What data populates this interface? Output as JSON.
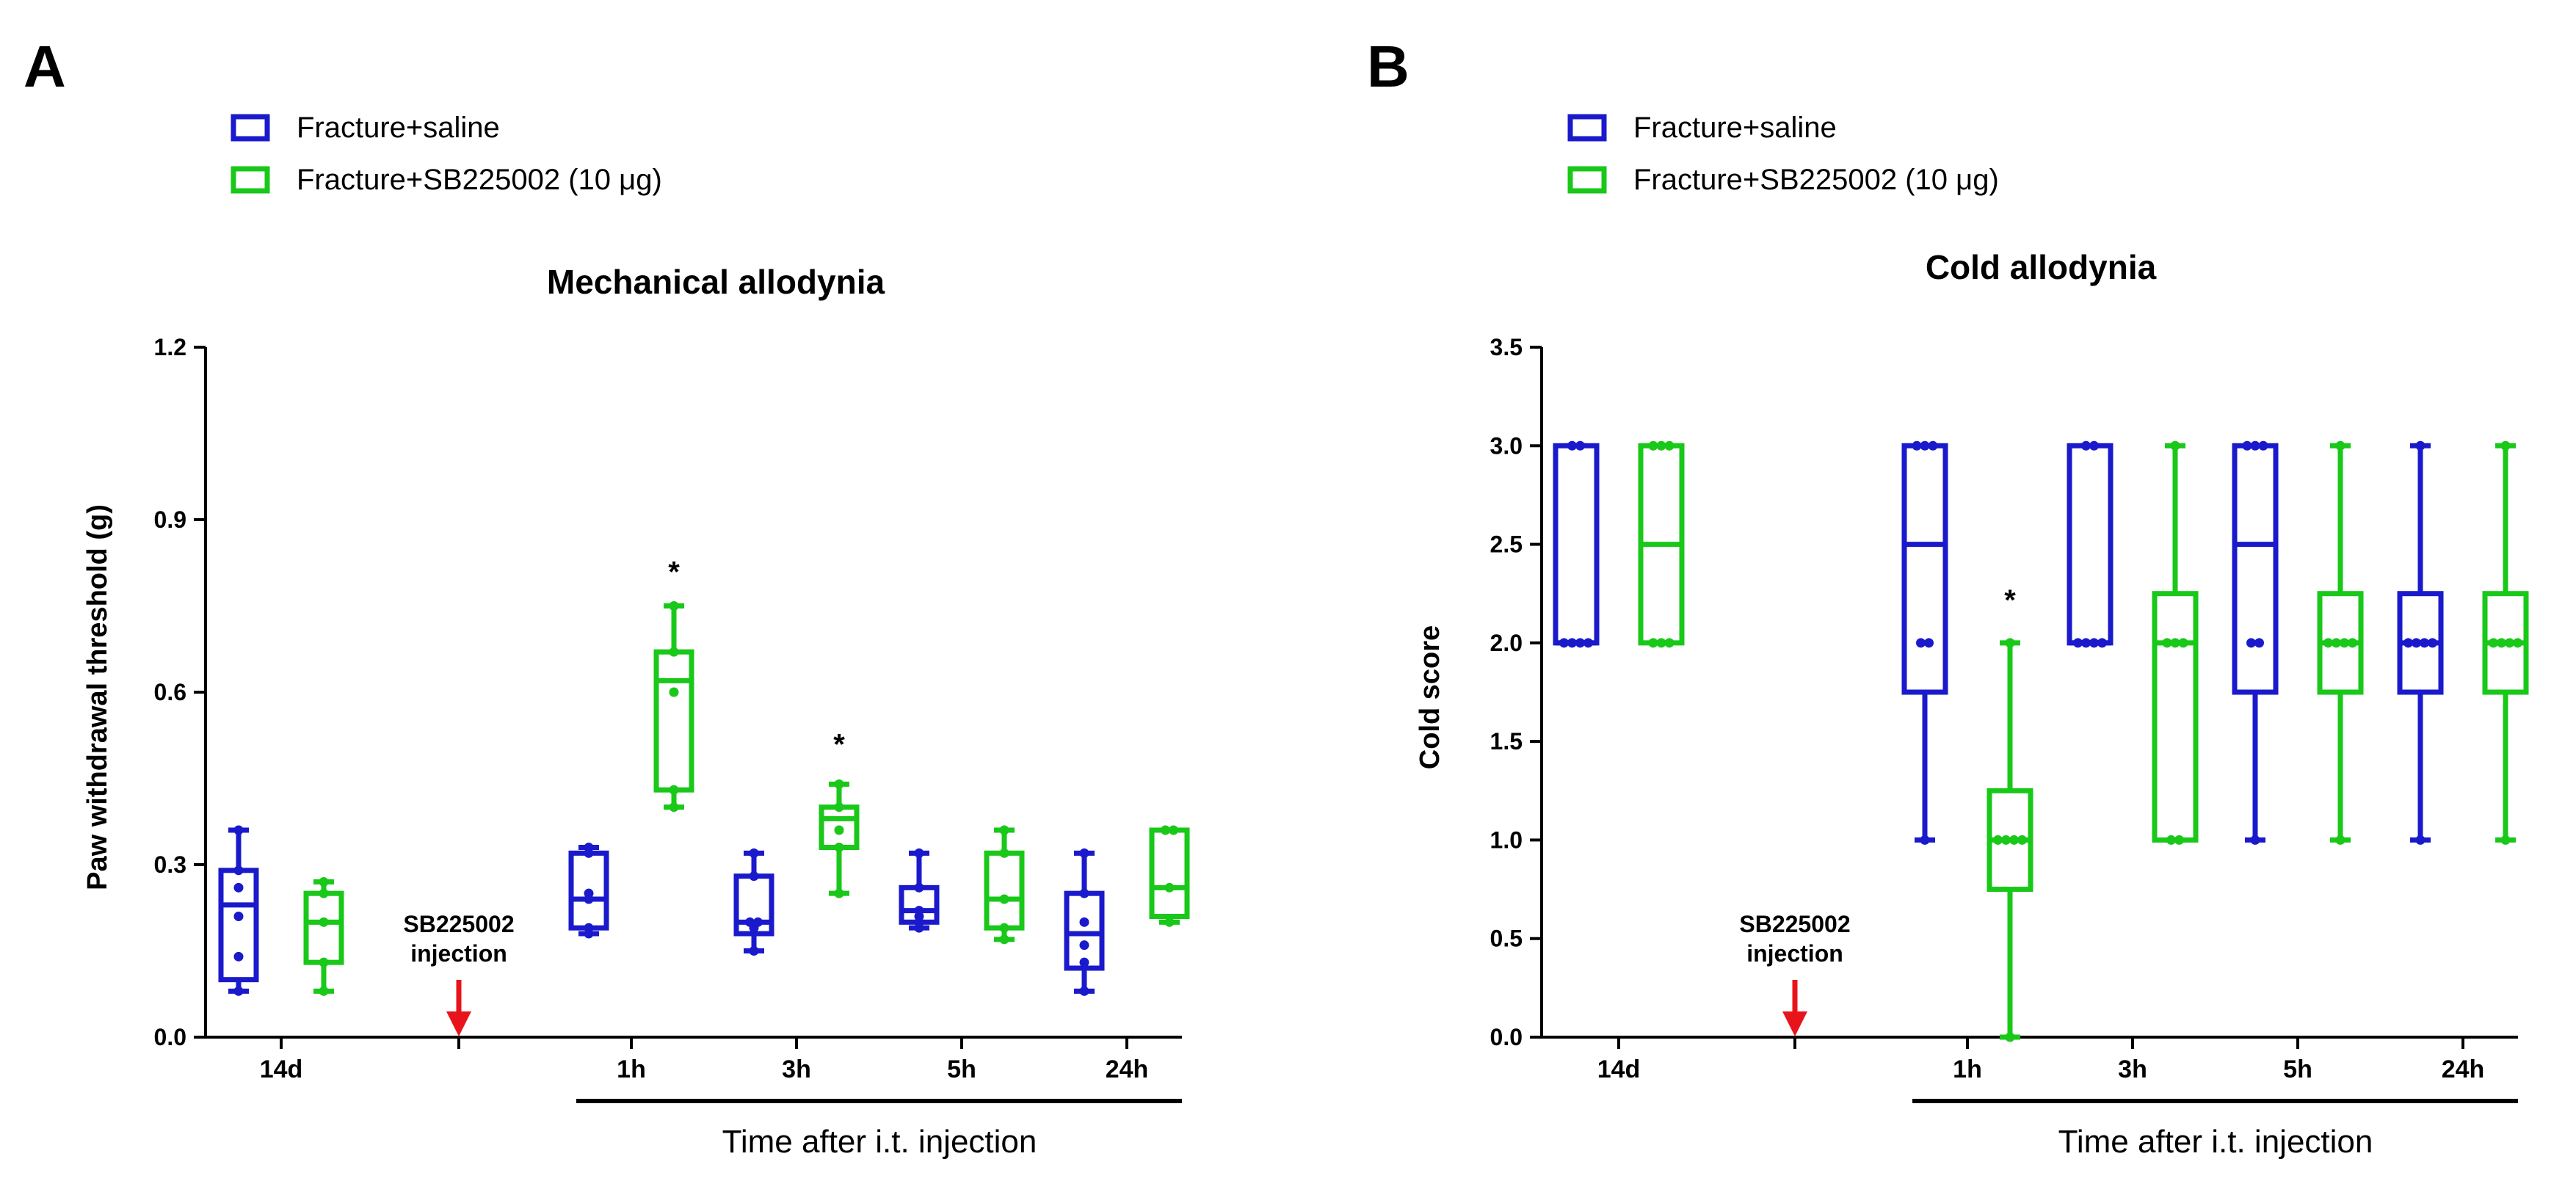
{
  "chart_data": [
    {
      "type": "box",
      "panel_label": "A",
      "title": "Mechanical allodynia",
      "xlabel": "Time after i.t. injection",
      "ylabel": "Paw withdrawal threshold (g)",
      "ylim": [
        0,
        1.2
      ],
      "yticks": [
        "0.0",
        "0.3",
        "0.6",
        "0.9",
        "1.2"
      ],
      "ytick_values": [
        0,
        0.3,
        0.6,
        0.9,
        1.2
      ],
      "categories": [
        "14d",
        "",
        "1h",
        "3h",
        "5h",
        "24h"
      ],
      "injection_label": [
        "SB225002",
        "injection"
      ],
      "series": [
        {
          "name": "Fracture+saline",
          "color": "#1a1acc",
          "boxes": [
            {
              "category": "14d",
              "min": 0.08,
              "q1": 0.1,
              "median": 0.23,
              "q3": 0.29,
              "max": 0.36,
              "points": [
                0.08,
                0.14,
                0.21,
                0.26,
                0.29,
                0.36
              ]
            },
            {
              "category": "1h",
              "min": 0.18,
              "q1": 0.19,
              "median": 0.24,
              "q3": 0.32,
              "max": 0.33,
              "points": [
                0.18,
                0.19,
                0.24,
                0.25,
                0.32,
                0.33
              ]
            },
            {
              "category": "3h",
              "min": 0.15,
              "q1": 0.18,
              "median": 0.2,
              "q3": 0.28,
              "max": 0.32,
              "points": [
                0.15,
                0.19,
                0.2,
                0.2,
                0.28,
                0.32
              ]
            },
            {
              "category": "5h",
              "min": 0.19,
              "q1": 0.2,
              "median": 0.22,
              "q3": 0.26,
              "max": 0.32,
              "points": [
                0.19,
                0.2,
                0.21,
                0.22,
                0.26,
                0.32
              ]
            },
            {
              "category": "24h",
              "min": 0.08,
              "q1": 0.12,
              "median": 0.18,
              "q3": 0.25,
              "max": 0.32,
              "points": [
                0.08,
                0.13,
                0.16,
                0.2,
                0.25,
                0.32
              ]
            }
          ]
        },
        {
          "name": "Fracture+SB225002 (10 μg)",
          "color": "#19c819",
          "boxes": [
            {
              "category": "14d",
              "min": 0.08,
              "q1": 0.13,
              "median": 0.2,
              "q3": 0.25,
              "max": 0.27,
              "points": [
                0.08,
                0.13,
                0.2,
                0.25,
                0.27
              ]
            },
            {
              "category": "1h",
              "min": 0.4,
              "q1": 0.43,
              "median": 0.62,
              "q3": 0.67,
              "max": 0.75,
              "points": [
                0.4,
                0.43,
                0.6,
                0.67,
                0.75
              ]
            },
            {
              "category": "3h",
              "min": 0.25,
              "q1": 0.33,
              "median": 0.38,
              "q3": 0.4,
              "max": 0.44,
              "points": [
                0.25,
                0.33,
                0.36,
                0.4,
                0.44
              ]
            },
            {
              "category": "5h",
              "min": 0.17,
              "q1": 0.19,
              "median": 0.24,
              "q3": 0.32,
              "max": 0.36,
              "points": [
                0.17,
                0.19,
                0.24,
                0.32,
                0.36
              ]
            },
            {
              "category": "24h",
              "min": 0.2,
              "q1": 0.21,
              "median": 0.26,
              "q3": 0.36,
              "max": 0.36,
              "points": [
                0.2,
                0.26,
                0.36,
                0.36
              ]
            }
          ]
        }
      ],
      "significance": [
        {
          "category": "1h",
          "series": 1,
          "label": "*",
          "value": 0.81
        },
        {
          "category": "3h",
          "series": 1,
          "label": "*",
          "value": 0.51
        }
      ]
    },
    {
      "type": "box",
      "panel_label": "B",
      "title": "Cold allodynia",
      "xlabel": "Time after i.t. injection",
      "ylabel": "Cold score",
      "ylim": [
        0,
        3.5
      ],
      "yticks": [
        "0.0",
        "0.5",
        "1.0",
        "1.5",
        "2.0",
        "2.5",
        "3.0",
        "3.5"
      ],
      "ytick_values": [
        0,
        0.5,
        1,
        1.5,
        2,
        2.5,
        3,
        3.5
      ],
      "categories": [
        "14d",
        "",
        "1h",
        "3h",
        "5h",
        "24h"
      ],
      "injection_label": [
        "SB225002",
        "injection"
      ],
      "series": [
        {
          "name": "Fracture+saline",
          "color": "#1a1acc",
          "boxes": [
            {
              "category": "14d",
              "min": 2.0,
              "q1": 2.0,
              "median": 2.0,
              "q3": 3.0,
              "max": 3.0,
              "points": [
                2,
                2,
                2,
                2,
                3,
                3
              ]
            },
            {
              "category": "1h",
              "min": 1.0,
              "q1": 1.75,
              "median": 2.5,
              "q3": 3.0,
              "max": 3.0,
              "points": [
                1,
                2,
                2,
                3,
                3,
                3
              ]
            },
            {
              "category": "3h",
              "min": 2.0,
              "q1": 2.0,
              "median": 2.0,
              "q3": 3.0,
              "max": 3.0,
              "points": [
                2,
                2,
                2,
                2,
                3,
                3
              ]
            },
            {
              "category": "5h",
              "min": 1.0,
              "q1": 1.75,
              "median": 2.5,
              "q3": 3.0,
              "max": 3.0,
              "points": [
                1,
                2,
                2,
                3,
                3,
                3
              ]
            },
            {
              "category": "24h",
              "min": 1.0,
              "q1": 1.75,
              "median": 2.0,
              "q3": 2.25,
              "max": 3.0,
              "points": [
                1,
                2,
                2,
                2,
                2,
                3
              ]
            }
          ]
        },
        {
          "name": "Fracture+SB225002 (10 μg)",
          "color": "#19c819",
          "boxes": [
            {
              "category": "14d",
              "min": 2.0,
              "q1": 2.0,
              "median": 2.5,
              "q3": 3.0,
              "max": 3.0,
              "points": [
                2,
                2,
                2,
                3,
                3,
                3
              ]
            },
            {
              "category": "1h",
              "min": 0.0,
              "q1": 0.75,
              "median": 1.0,
              "q3": 1.25,
              "max": 2.0,
              "points": [
                0,
                1,
                1,
                1,
                1,
                2
              ]
            },
            {
              "category": "3h",
              "min": 1.0,
              "q1": 1.0,
              "median": 2.0,
              "q3": 2.25,
              "max": 3.0,
              "points": [
                1,
                1,
                2,
                2,
                2,
                3
              ]
            },
            {
              "category": "5h",
              "min": 1.0,
              "q1": 1.75,
              "median": 2.0,
              "q3": 2.25,
              "max": 3.0,
              "points": [
                1,
                2,
                2,
                2,
                2,
                3
              ]
            },
            {
              "category": "24h",
              "min": 1.0,
              "q1": 1.75,
              "median": 2.0,
              "q3": 2.25,
              "max": 3.0,
              "points": [
                1,
                2,
                2,
                2,
                2,
                3
              ]
            }
          ]
        }
      ],
      "significance": [
        {
          "category": "1h",
          "series": 1,
          "label": "*",
          "value": 2.22
        }
      ]
    }
  ]
}
